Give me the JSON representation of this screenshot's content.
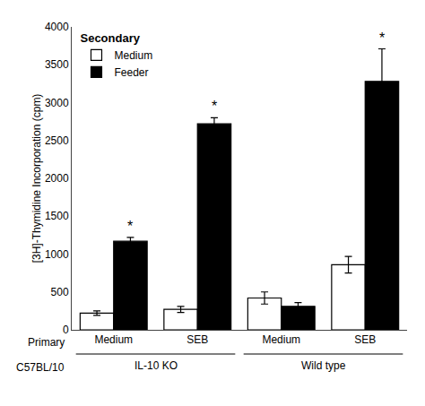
{
  "chart_data": {
    "type": "bar",
    "categories": [
      "Medium",
      "SEB",
      "Medium",
      "SEB"
    ],
    "group_labels": [
      "IL-10 KO",
      "IL-10 KO",
      "Wild type",
      "Wild type"
    ],
    "row_labels": [
      "Primary",
      "C57BL/10"
    ],
    "series": [
      {
        "name": "Medium",
        "color": "#ffffff",
        "values": [
          220,
          270,
          420,
          860
        ],
        "errors": [
          30,
          40,
          80,
          110
        ]
      },
      {
        "name": "Feeder",
        "color": "#000000",
        "values": [
          1170,
          2720,
          310,
          3280
        ],
        "errors": [
          50,
          80,
          50,
          430
        ]
      }
    ],
    "edge_color": "#000000",
    "ylabel": "[3H]-Thymidine Incorporation (cpm)",
    "ylim": [
      0,
      4000
    ],
    "yticks": [
      0,
      500,
      1000,
      1500,
      2000,
      2500,
      3000,
      3500,
      4000
    ],
    "grid": false,
    "legend": "upper left",
    "legend_title": "Secondary",
    "annotations": [
      {
        "text": "*",
        "series": "Feeder",
        "category_index": 0
      },
      {
        "text": "*",
        "series": "Feeder",
        "category_index": 1
      },
      {
        "text": "*",
        "series": "Feeder",
        "category_index": 3
      }
    ]
  }
}
